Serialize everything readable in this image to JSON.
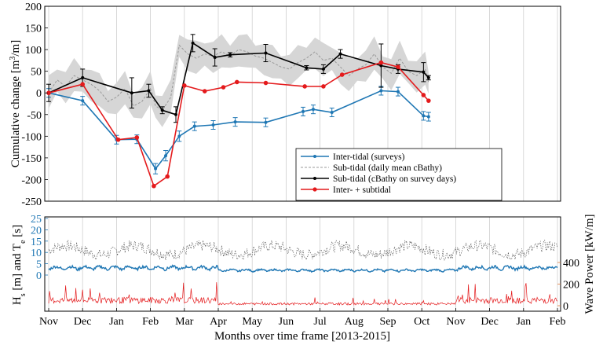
{
  "chart_data": [
    {
      "type": "line",
      "panel": "top",
      "ylabel": "Cumulative change [m³/m]",
      "ylabel_main": "Cumulative change [m",
      "ylabel_sup": "3",
      "ylabel_end": "/m]",
      "ylim": [
        -250,
        200
      ],
      "yticks": [
        "200",
        "150",
        "100",
        "50",
        "0",
        "-50",
        "-100",
        "-150",
        "-200",
        "-250"
      ],
      "grid": "vertical",
      "legend_position": "lower-right",
      "x": [
        0,
        1,
        2,
        3,
        4,
        5,
        6,
        7,
        8,
        9,
        10,
        11,
        12,
        13,
        14,
        15
      ],
      "series": [
        {
          "name": "Inter-tidal (surveys)",
          "color": "#1f77b4",
          "marker": "dot-errorbar",
          "x": [
            0.0,
            1.0,
            2.0,
            2.6,
            3.15,
            3.45,
            3.85,
            4.3,
            4.85,
            5.5,
            6.4,
            7.5,
            7.8,
            8.35,
            9.8,
            10.3,
            11.05,
            11.2
          ],
          "y": [
            0,
            -18,
            -108,
            -107,
            -175,
            -145,
            -100,
            -77,
            -74,
            -67,
            -68,
            -43,
            -38,
            -45,
            5,
            3,
            -53,
            -55
          ],
          "err": [
            10,
            10,
            10,
            10,
            12,
            12,
            12,
            10,
            10,
            10,
            10,
            10,
            10,
            10,
            10,
            10,
            10,
            10
          ]
        },
        {
          "name": "Sub-tidal (daily mean cBathy)",
          "color": "#999999",
          "style": "dashed-with-band",
          "x": [
            0.0,
            0.25,
            0.5,
            0.75,
            1.0,
            1.25,
            1.5,
            1.75,
            2.0,
            2.25,
            2.5,
            2.75,
            3.0,
            3.15,
            3.35,
            3.6,
            3.85,
            4.1,
            4.35,
            4.6,
            4.85,
            5.1,
            5.35,
            5.6,
            5.85,
            6.1,
            6.35,
            6.6,
            6.85,
            7.1,
            7.35,
            7.6,
            7.85,
            8.1,
            8.35,
            8.6,
            8.85,
            9.1,
            9.35,
            9.6,
            9.85,
            10.1,
            10.35,
            10.6,
            10.85,
            11.1,
            11.2
          ],
          "y": [
            0,
            30,
            15,
            40,
            30,
            20,
            5,
            -20,
            -10,
            10,
            -30,
            -20,
            10,
            -30,
            -40,
            -10,
            110,
            90,
            80,
            90,
            85,
            95,
            85,
            100,
            95,
            85,
            80,
            70,
            60,
            55,
            70,
            80,
            95,
            75,
            80,
            60,
            40,
            55,
            65,
            90,
            60,
            45,
            80,
            50,
            40,
            55,
            25
          ],
          "band_halfwidth": 30
        },
        {
          "name": "Sub-tidal (cBathy on survey days)",
          "color": "#000000",
          "marker": "dot-errorbar",
          "x": [
            0.0,
            1.0,
            2.45,
            2.95,
            3.35,
            3.75,
            4.25,
            4.9,
            5.35,
            6.4,
            7.6,
            8.1,
            8.6,
            9.8,
            10.3,
            11.05,
            11.2
          ],
          "y": [
            0,
            35,
            0,
            5,
            -40,
            -50,
            115,
            82,
            88,
            92,
            58,
            55,
            90,
            63,
            55,
            48,
            35
          ],
          "err": [
            20,
            20,
            35,
            15,
            8,
            18,
            20,
            20,
            5,
            20,
            5,
            10,
            10,
            50,
            10,
            22,
            5
          ]
        },
        {
          "name": "Inter- + subtidal",
          "color": "#e41a1c",
          "marker": "dot",
          "x": [
            0.0,
            1.0,
            2.05,
            2.6,
            3.1,
            3.5,
            4.0,
            4.6,
            5.15,
            5.55,
            6.4,
            7.55,
            8.1,
            8.65,
            9.8,
            10.3,
            11.05,
            11.2
          ],
          "y": [
            0,
            20,
            -108,
            -103,
            -215,
            -193,
            17,
            4,
            13,
            25,
            23,
            15,
            15,
            42,
            70,
            60,
            -5,
            -18
          ]
        }
      ]
    },
    {
      "type": "line",
      "panel": "bottom",
      "ylabel_left": "Hs [m] and Te [s]",
      "ylabel_right": "Wave Power [kW/m]",
      "xlabel": "Months over time frame [2013-2015]",
      "x_ticks": [
        "Nov",
        "Dec",
        "Jan",
        "Feb",
        "Mar",
        "Apr",
        "May",
        "Jun",
        "Jul",
        "Aug",
        "Sep",
        "Oct",
        "Nov",
        "Dec",
        "Jan",
        "Feb"
      ],
      "ylim_left": [
        0,
        25
      ],
      "yticks_left": [
        "0",
        "5",
        "10",
        "15",
        "20",
        "25"
      ],
      "ylim_right": [
        0,
        700
      ],
      "yticks_right": [
        "0",
        "200",
        "400"
      ],
      "series": [
        {
          "name": "Hs",
          "color": "#1f77b4",
          "axis": "left",
          "typical_range": [
            0.5,
            3
          ]
        },
        {
          "name": "Te",
          "color": "#444444",
          "axis": "left",
          "typical_range": [
            8,
            14
          ]
        },
        {
          "name": "Wave Power",
          "color": "#e41a1c",
          "axis": "right",
          "typical_range": [
            0,
            300
          ]
        }
      ]
    }
  ]
}
